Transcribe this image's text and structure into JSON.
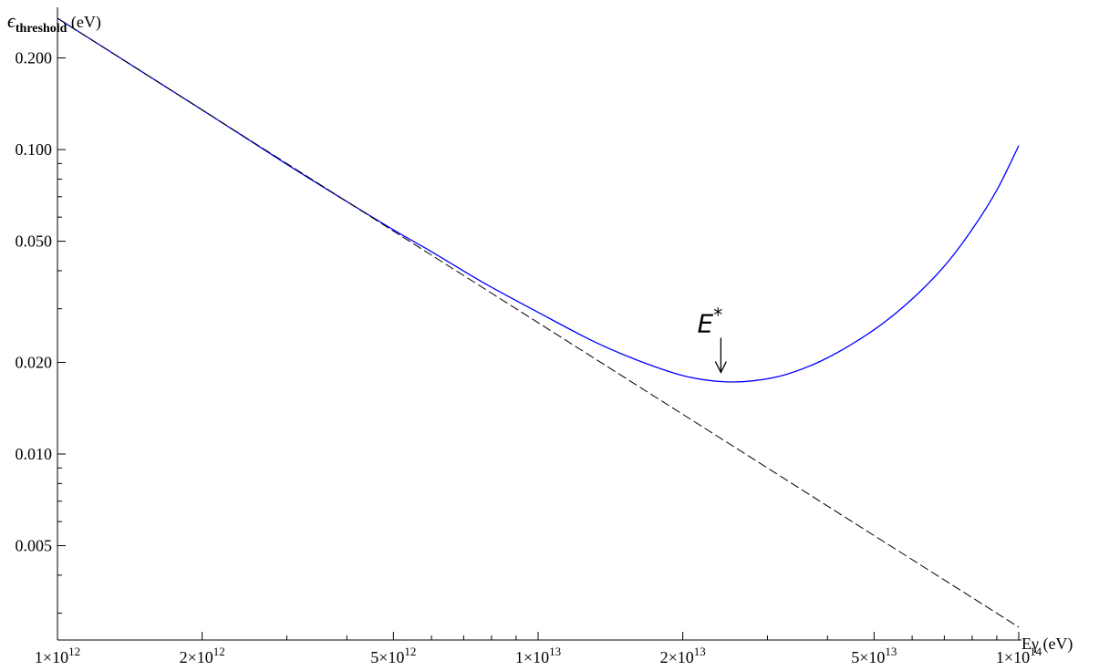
{
  "chart_data": {
    "type": "line",
    "xscale": "log",
    "yscale": "log",
    "xlim": [
      1000000000000.0,
      100000000000000.0
    ],
    "ylim": [
      0.00245,
      0.27
    ],
    "ylabel_main": "ϵ",
    "ylabel_sub": "threshold",
    "ylabel_unit": " (eV)",
    "xlabel_main": "Eγ",
    "xlabel_unit": " (eV)",
    "x_ticks": [
      {
        "value": 1000000000000.0,
        "mant": "1",
        "exp": "12"
      },
      {
        "value": 2000000000000.0,
        "mant": "2",
        "exp": "12"
      },
      {
        "value": 5000000000000.0,
        "mant": "5",
        "exp": "12"
      },
      {
        "value": 10000000000000.0,
        "mant": "1",
        "exp": "13"
      },
      {
        "value": 20000000000000.0,
        "mant": "2",
        "exp": "13"
      },
      {
        "value": 50000000000000.0,
        "mant": "5",
        "exp": "13"
      },
      {
        "value": 100000000000000.0,
        "mant": "1",
        "exp": "14"
      }
    ],
    "x_tick_times": "×10",
    "y_ticks": [
      {
        "value": 0.2,
        "label": "0.200"
      },
      {
        "value": 0.1,
        "label": "0.100"
      },
      {
        "value": 0.05,
        "label": "0.050"
      },
      {
        "value": 0.02,
        "label": "0.020"
      },
      {
        "value": 0.01,
        "label": "0.010"
      },
      {
        "value": 0.005,
        "label": "0.005"
      }
    ],
    "series": [
      {
        "style": "solid",
        "color": "#0000ff",
        "points": [
          [
            1000000000000.0,
            0.27
          ],
          [
            2000000000000.0,
            0.135
          ],
          [
            3000000000000.0,
            0.0895
          ],
          [
            4000000000000.0,
            0.0675
          ],
          [
            5000000000000.0,
            0.0545
          ],
          [
            6000000000000.0,
            0.0462
          ],
          [
            7000000000000.0,
            0.0399
          ],
          [
            8000000000000.0,
            0.0353
          ],
          [
            10000000000000.0,
            0.0292
          ],
          [
            13000000000000.0,
            0.0235
          ],
          [
            16000000000000.0,
            0.0204
          ],
          [
            20000000000000.0,
            0.0181
          ],
          [
            24000000000000.0,
            0.0173
          ],
          [
            28000000000000.0,
            0.0174
          ],
          [
            33000000000000.0,
            0.0183
          ],
          [
            40000000000000.0,
            0.0207
          ],
          [
            50000000000000.0,
            0.0256
          ],
          [
            60000000000000.0,
            0.0323
          ],
          [
            70000000000000.0,
            0.0414
          ],
          [
            80000000000000.0,
            0.0547
          ],
          [
            90000000000000.0,
            0.0735
          ],
          [
            100000000000000.0,
            0.103
          ]
        ]
      },
      {
        "style": "dashed",
        "color": "#000000",
        "points": [
          [
            1000000000000.0,
            0.27
          ],
          [
            100000000000000.0,
            0.0027
          ]
        ]
      }
    ],
    "annotation": {
      "label": "E",
      "sup": "*",
      "x": 24000000000000.0,
      "y": 0.0173
    }
  }
}
